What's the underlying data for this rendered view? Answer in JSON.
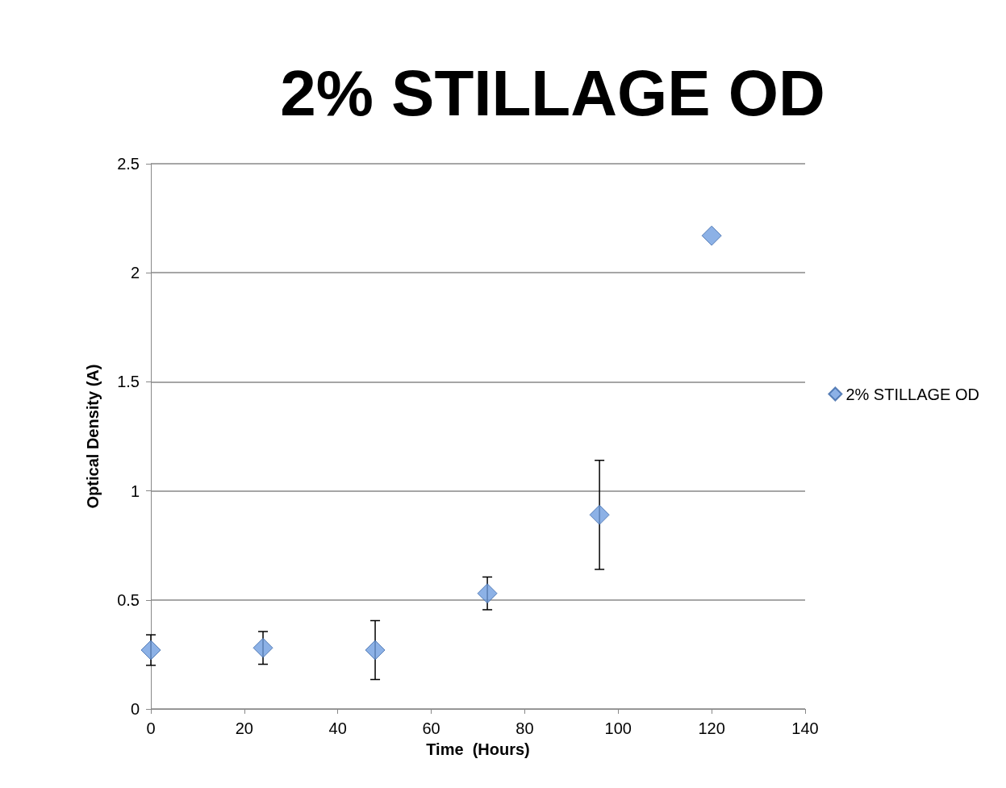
{
  "chart_data": {
    "type": "scatter",
    "title": "2% STILLAGE OD",
    "xlabel": "Time  (Hours)",
    "ylabel": "Optical Density (A)",
    "x": [
      0,
      24,
      48,
      72,
      96,
      120
    ],
    "series": [
      {
        "name": "2% STILLAGE OD",
        "color": "#6f9de0",
        "values": [
          0.27,
          0.28,
          0.27,
          0.53,
          0.89,
          2.17
        ],
        "errors": [
          0.07,
          0.075,
          0.135,
          0.075,
          0.25,
          null
        ]
      }
    ],
    "xlim": [
      0,
      140
    ],
    "xticks": [
      0,
      20,
      40,
      60,
      80,
      100,
      120,
      140
    ],
    "ylim": [
      0,
      2.5
    ],
    "yticks": [
      0,
      0.5,
      1,
      1.5,
      2,
      2.5
    ],
    "grid": "y",
    "legend": "right",
    "marker": "diamond"
  }
}
